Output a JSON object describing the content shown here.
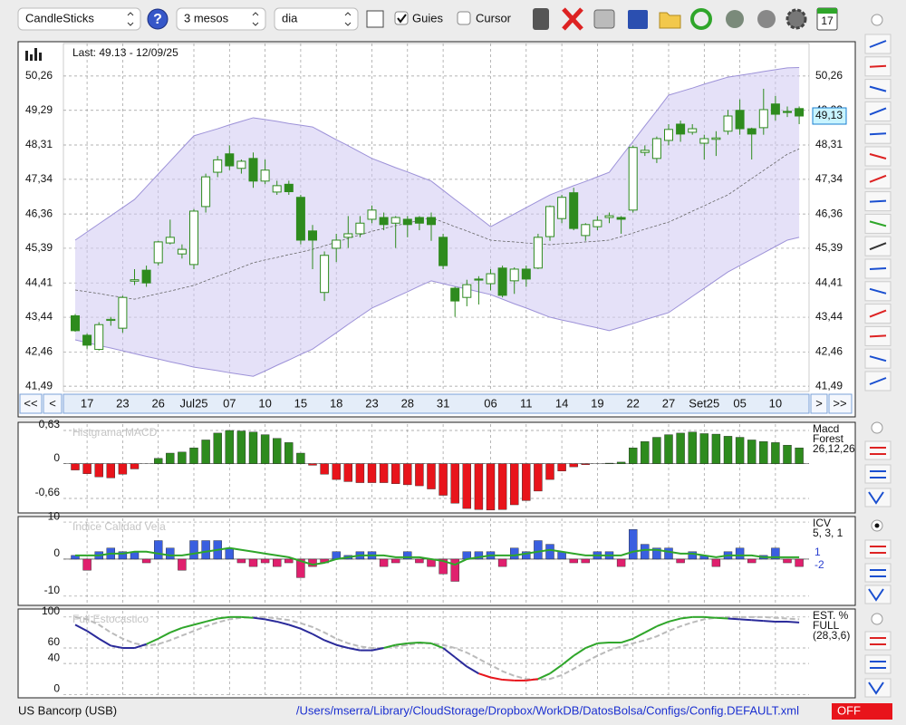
{
  "toolbar": {
    "chart_type": "CandleSticks",
    "help": "?",
    "period": "3 mesos",
    "interval": "dia",
    "guides": "Guies",
    "cursor": "Cursor",
    "calendar": "17"
  },
  "nav": [
    "<<",
    "<",
    ">",
    ">>"
  ],
  "status": {
    "symbol": "US Bancorp (USB)",
    "path": "/Users/mserra/Library/CloudStorage/Dropbox/WorkDB/DatosBolsa/Configs/Config.DEFAULT.xml",
    "state": "OFF"
  },
  "chart_data": [
    {
      "type": "candlestick",
      "title": "Last: 49.13 - 12/09/25",
      "categories": [
        null,
        "17",
        null,
        null,
        "23",
        null,
        null,
        "26",
        null,
        null,
        "Jul25",
        null,
        null,
        "07",
        null,
        null,
        "10",
        null,
        null,
        "15",
        null,
        null,
        "18",
        null,
        null,
        "23",
        null,
        null,
        "28",
        null,
        null,
        "31",
        null,
        null,
        null,
        "06",
        null,
        null,
        "11",
        null,
        null,
        "14",
        null,
        null,
        "19",
        null,
        null,
        "22",
        null,
        null,
        "27",
        null,
        null,
        "Set25",
        null,
        null,
        "05",
        null,
        null,
        "10",
        null,
        null
      ],
      "open": [
        43.48,
        42.93,
        42.53,
        43.35,
        43.13,
        44.46,
        44.77,
        44.98,
        45.54,
        45.23,
        44.93,
        46.57,
        47.54,
        48.06,
        47.65,
        47.93,
        47.29,
        46.98,
        47.2,
        46.83,
        45.88,
        44.14,
        45.39,
        45.7,
        45.8,
        46.21,
        46.26,
        46.1,
        46.21,
        46.26,
        46.26,
        45.7,
        44.26,
        44.0,
        44.52,
        44.39,
        44.83,
        44.47,
        44.8,
        44.83,
        45.72,
        46.23,
        46.96,
        45.75,
        46.0,
        46.26,
        46.26,
        46.47,
        48.1,
        47.93,
        48.44,
        48.9,
        48.67,
        48.36,
        48.47,
        48.7,
        49.29,
        48.77,
        48.8,
        49.47,
        49.26,
        49.34
      ],
      "high": [
        43.53,
        42.98,
        43.3,
        43.45,
        44.05,
        44.8,
        44.9,
        45.6,
        46.2,
        45.5,
        46.5,
        47.5,
        48.0,
        48.3,
        47.9,
        48.1,
        47.9,
        47.3,
        47.3,
        46.9,
        46.05,
        45.3,
        45.8,
        46.3,
        46.3,
        46.6,
        46.4,
        46.3,
        46.3,
        46.3,
        46.4,
        45.8,
        44.3,
        44.5,
        44.6,
        44.8,
        44.9,
        44.85,
        44.9,
        45.8,
        46.6,
        46.9,
        47.1,
        46.1,
        46.3,
        46.4,
        46.3,
        48.3,
        48.3,
        48.55,
        48.9,
        49.0,
        48.9,
        48.6,
        48.7,
        49.3,
        49.6,
        48.8,
        49.9,
        49.7,
        49.4,
        49.4
      ],
      "low": [
        43.03,
        42.55,
        42.5,
        43.2,
        43.0,
        44.35,
        44.3,
        44.9,
        45.5,
        45.1,
        44.8,
        46.4,
        47.4,
        47.6,
        47.5,
        47.1,
        47.2,
        46.9,
        46.9,
        45.5,
        44.8,
        43.9,
        45.0,
        45.4,
        45.7,
        46.1,
        45.9,
        45.4,
        45.7,
        45.9,
        45.6,
        44.8,
        43.45,
        43.75,
        43.8,
        44.2,
        44.0,
        44.1,
        44.3,
        44.8,
        45.6,
        46.1,
        45.9,
        45.6,
        45.9,
        46.1,
        45.8,
        46.4,
        48.0,
        47.8,
        48.3,
        48.4,
        48.6,
        47.9,
        48.0,
        48.6,
        48.6,
        47.9,
        48.6,
        49.0,
        49.1,
        48.9
      ],
      "close": [
        43.06,
        42.65,
        43.23,
        43.38,
        44.0,
        44.5,
        44.41,
        45.57,
        45.7,
        45.36,
        46.44,
        47.41,
        47.89,
        47.72,
        47.85,
        47.29,
        47.6,
        47.16,
        46.99,
        45.62,
        45.62,
        45.19,
        45.62,
        45.8,
        46.1,
        46.47,
        46.06,
        46.26,
        46.06,
        46.1,
        46.06,
        44.9,
        43.9,
        44.36,
        44.49,
        44.67,
        44.06,
        44.8,
        44.52,
        45.7,
        46.57,
        46.83,
        45.95,
        46.06,
        46.18,
        46.31,
        46.21,
        48.24,
        48.16,
        48.49,
        48.75,
        48.62,
        48.77,
        48.49,
        48.51,
        49.13,
        48.77,
        48.62,
        49.31,
        49.18,
        49.23,
        49.13
      ],
      "upper_band": [
        45.62,
        45.85,
        46.08,
        46.31,
        46.54,
        46.77,
        47.13,
        47.49,
        47.85,
        48.21,
        48.57,
        48.67,
        48.77,
        48.88,
        48.98,
        49.08,
        49.03,
        48.98,
        48.92,
        48.87,
        48.82,
        48.64,
        48.46,
        48.29,
        48.11,
        47.93,
        47.8,
        47.67,
        47.55,
        47.42,
        47.29,
        47.03,
        46.77,
        46.52,
        46.26,
        46.0,
        46.18,
        46.36,
        46.54,
        46.72,
        46.9,
        47.03,
        47.16,
        47.28,
        47.41,
        47.54,
        47.98,
        48.41,
        48.85,
        49.28,
        49.72,
        49.82,
        49.92,
        50.03,
        50.13,
        50.23,
        50.28,
        50.33,
        50.39,
        50.44,
        50.49,
        50.5
      ],
      "middle_band": [
        44.21,
        44.16,
        44.11,
        44.05,
        44.0,
        43.95,
        44.03,
        44.11,
        44.18,
        44.26,
        44.34,
        44.47,
        44.6,
        44.72,
        44.85,
        44.98,
        45.06,
        45.13,
        45.21,
        45.28,
        45.36,
        45.46,
        45.56,
        45.67,
        45.77,
        45.87,
        45.95,
        46.03,
        46.1,
        46.18,
        46.26,
        46.13,
        46.0,
        45.88,
        45.75,
        45.62,
        45.59,
        45.57,
        45.54,
        45.52,
        45.49,
        45.52,
        45.54,
        45.57,
        45.59,
        45.62,
        45.72,
        45.82,
        45.93,
        46.03,
        46.13,
        46.28,
        46.44,
        46.59,
        46.75,
        46.9,
        47.13,
        47.36,
        47.59,
        47.82,
        48.05,
        48.2
      ],
      "lower_band": [
        42.8,
        42.72,
        42.64,
        42.57,
        42.49,
        42.41,
        42.33,
        42.26,
        42.18,
        42.11,
        42.03,
        41.98,
        41.93,
        41.87,
        41.82,
        41.77,
        41.92,
        42.08,
        42.23,
        42.39,
        42.54,
        42.77,
        43.0,
        43.24,
        43.47,
        43.7,
        43.85,
        44.01,
        44.16,
        44.32,
        44.47,
        44.39,
        44.31,
        44.24,
        44.16,
        44.08,
        43.95,
        43.82,
        43.7,
        43.57,
        43.44,
        43.36,
        43.29,
        43.21,
        43.14,
        43.06,
        43.16,
        43.26,
        43.37,
        43.47,
        43.57,
        43.8,
        44.03,
        44.26,
        44.49,
        44.72,
        44.9,
        45.08,
        45.26,
        45.44,
        45.62,
        45.7
      ],
      "last_price": {
        "value": 49.13,
        "label": "49,13"
      },
      "ylim": [
        41.34,
        51.18
      ],
      "yticks": [
        {
          "value": 50.26,
          "label": "50,26"
        },
        {
          "value": 49.29,
          "label": "49,29"
        },
        {
          "value": 48.31,
          "label": "48,31"
        },
        {
          "value": 47.34,
          "label": "47,34"
        },
        {
          "value": 46.36,
          "label": "46,36"
        },
        {
          "value": 45.39,
          "label": "45,39"
        },
        {
          "value": 44.41,
          "label": "44,41"
        },
        {
          "value": 43.44,
          "label": "43,44"
        },
        {
          "value": 42.46,
          "label": "42,46"
        },
        {
          "value": 41.49,
          "label": "41,49"
        }
      ],
      "grid": true,
      "up_color": "#ffffff",
      "down_color": "#2e8b1e",
      "band_color": "#cfc8f2"
    },
    {
      "type": "bar",
      "title": "Histgrama MACD",
      "legend": [
        "Macd",
        "Forest",
        "26,12,26"
      ],
      "values": [
        -0.12,
        -0.19,
        -0.25,
        -0.27,
        -0.2,
        -0.1,
        0,
        0.1,
        0.2,
        0.22,
        0.3,
        0.45,
        0.58,
        0.63,
        0.62,
        0.6,
        0.55,
        0.48,
        0.4,
        0.2,
        -0.03,
        -0.2,
        -0.3,
        -0.34,
        -0.36,
        -0.36,
        -0.36,
        -0.38,
        -0.4,
        -0.42,
        -0.48,
        -0.6,
        -0.75,
        -0.85,
        -0.87,
        -0.88,
        -0.87,
        -0.78,
        -0.7,
        -0.52,
        -0.3,
        -0.14,
        -0.06,
        -0.02,
        0,
        0.01,
        0.03,
        0.3,
        0.42,
        0.5,
        0.55,
        0.58,
        0.6,
        0.57,
        0.56,
        0.52,
        0.5,
        0.45,
        0.42,
        0.4,
        0.35,
        0.3
      ],
      "ylim": [
        -0.9,
        0.75
      ],
      "yticks": [
        {
          "value": 0.63,
          "label": "0,63"
        },
        0,
        {
          "value": -0.66,
          "label": "-0,66"
        }
      ],
      "positive_color": "#2e8b1e",
      "negative_color": "#e8141b"
    },
    {
      "type": "bar",
      "title": "Indice Calidad Vela",
      "legend": [
        "ICV",
        "5, 3, 1"
      ],
      "readouts": [
        "1",
        "-2"
      ],
      "values": [
        1,
        -3,
        2,
        3,
        2,
        2,
        -1,
        5,
        3,
        -3,
        5,
        5,
        5,
        3,
        -1,
        -2,
        -1,
        -2,
        -1,
        -5,
        -2,
        -1,
        2,
        1,
        2,
        2,
        -2,
        -1,
        2,
        -1,
        -2,
        -4,
        -6,
        2,
        2,
        2,
        -2,
        3,
        2,
        5,
        4,
        2,
        -1,
        -1,
        2,
        2,
        -2,
        8,
        4,
        3,
        3,
        -1,
        2,
        1,
        -2,
        2,
        3,
        -1,
        1,
        3,
        -1,
        -2
      ],
      "signal": [
        1,
        1,
        1,
        1.5,
        1.5,
        2,
        2,
        1.5,
        1,
        1,
        1.5,
        2,
        2.5,
        3,
        2.5,
        2,
        1.5,
        1,
        0.5,
        -0.5,
        -1.5,
        -1,
        0,
        0.5,
        1,
        1,
        1,
        0.5,
        0.5,
        0.5,
        0,
        -0.5,
        -1.5,
        0,
        0.5,
        1,
        1,
        1,
        1.5,
        2,
        2.5,
        2,
        1.5,
        1,
        1,
        1,
        1,
        2,
        2.5,
        2.5,
        2,
        1.5,
        1.5,
        1,
        0.5,
        1,
        1,
        1,
        0.5,
        0.5,
        0.5,
        0.5
      ],
      "ylim": [
        -12,
        11
      ],
      "yticks": [
        10,
        0,
        -10
      ],
      "positive_color": "#3a5fe0",
      "negative_color": "#e0206e",
      "signal_color": "#2fa62a"
    },
    {
      "type": "line",
      "title": "Full Estocastico",
      "legend": [
        "EST. %",
        "FULL",
        "(28,3,6)"
      ],
      "k": [
        90,
        82,
        72,
        63,
        60,
        60,
        65,
        72,
        80,
        86,
        90,
        94,
        98,
        100,
        100,
        99,
        97,
        94,
        90,
        85,
        78,
        70,
        64,
        60,
        57,
        57,
        60,
        64,
        66,
        67,
        66,
        60,
        48,
        36,
        27,
        22,
        19,
        18,
        18,
        20,
        27,
        38,
        50,
        60,
        66,
        67,
        67,
        72,
        80,
        88,
        94,
        98,
        100,
        100,
        99,
        98,
        97,
        96,
        95,
        94,
        94,
        93
      ],
      "d": [
        100,
        97,
        90,
        80,
        72,
        66,
        63,
        65,
        70,
        76,
        82,
        88,
        93,
        97,
        99,
        100,
        100,
        98,
        96,
        92,
        87,
        80,
        72,
        66,
        62,
        60,
        60,
        62,
        64,
        66,
        66,
        64,
        60,
        54,
        46,
        38,
        30,
        24,
        20,
        19,
        20,
        25,
        33,
        42,
        50,
        57,
        62,
        66,
        70,
        75,
        82,
        88,
        93,
        97,
        99,
        100,
        100,
        100,
        100,
        99,
        98,
        97
      ],
      "ylim": [
        -2,
        108
      ],
      "yticks": [
        100,
        60,
        40,
        0
      ],
      "above_color": "#2fa62a",
      "below_color": "#2a2a9a",
      "low_color": "#e8141b",
      "low_level": 30,
      "d_color": "#bbbbbb"
    }
  ]
}
